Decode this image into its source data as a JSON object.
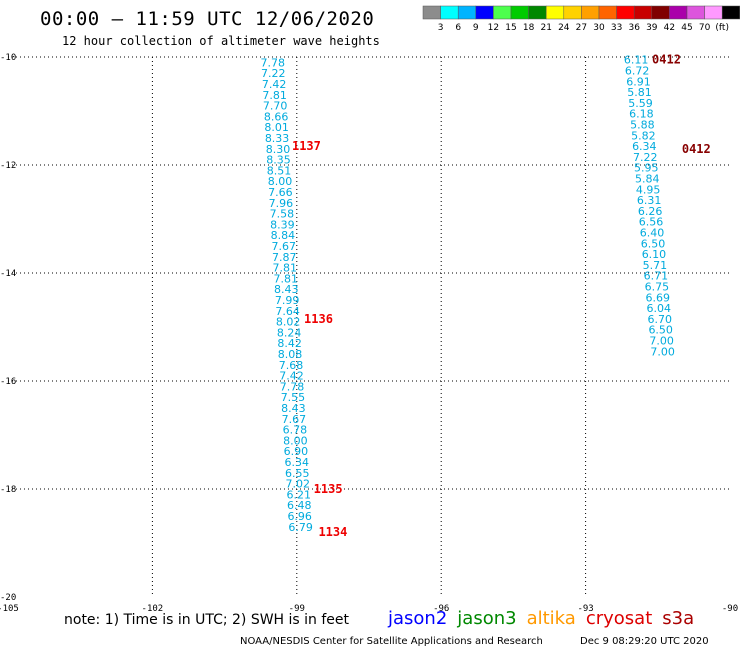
{
  "header": {
    "title": "00:00 – 11:59 UTC 12/06/2020",
    "subtitle": "12 hour collection of altimeter wave heights"
  },
  "colorbar": {
    "labels": [
      "3",
      "6",
      "9",
      "12",
      "15",
      "18",
      "21",
      "24",
      "27",
      "30",
      "33",
      "36",
      "39",
      "42",
      "45",
      "70"
    ],
    "unit": "(ft)",
    "colors": [
      "#8c8c8c",
      "#00ffff",
      "#00b4ff",
      "#0000ff",
      "#4dff4d",
      "#00cc00",
      "#008800",
      "#ffff00",
      "#ffd200",
      "#ffa000",
      "#ff6400",
      "#ff0000",
      "#c80000",
      "#800000",
      "#aa00aa",
      "#dd55dd",
      "#ff99ff",
      "#000000"
    ]
  },
  "chart_data": {
    "type": "scatter",
    "xlim": [
      -105,
      -90
    ],
    "ylim": [
      -20,
      -10
    ],
    "xticks": [
      "-105",
      "-102",
      "-99",
      "-96",
      "-93",
      "-90"
    ],
    "yticks": [
      "-10",
      "-12",
      "-14",
      "-16",
      "-18",
      "-20"
    ],
    "grid": true,
    "series": [
      {
        "name": "jason2",
        "color": "#00aadd",
        "points": [
          {
            "lon": -99.5,
            "lat": -10.1,
            "swh": "7.78"
          },
          {
            "lon": -99.49,
            "lat": -10.3,
            "swh": "7.22"
          },
          {
            "lon": -99.47,
            "lat": -10.5,
            "swh": "7.42"
          },
          {
            "lon": -99.46,
            "lat": -10.7,
            "swh": "7.81"
          },
          {
            "lon": -99.45,
            "lat": -10.9,
            "swh": "7.70"
          },
          {
            "lon": -99.43,
            "lat": -11.1,
            "swh": "8.66"
          },
          {
            "lon": -99.42,
            "lat": -11.3,
            "swh": "8.01"
          },
          {
            "lon": -99.41,
            "lat": -11.5,
            "swh": "8.33"
          },
          {
            "lon": -99.39,
            "lat": -11.7,
            "swh": "8.30"
          },
          {
            "lon": -99.38,
            "lat": -11.9,
            "swh": "8.35"
          },
          {
            "lon": -99.37,
            "lat": -12.1,
            "swh": "8.51"
          },
          {
            "lon": -99.35,
            "lat": -12.3,
            "swh": "8.00"
          },
          {
            "lon": -99.34,
            "lat": -12.5,
            "swh": "7.66"
          },
          {
            "lon": -99.33,
            "lat": -12.7,
            "swh": "7.96"
          },
          {
            "lon": -99.31,
            "lat": -12.9,
            "swh": "7.58"
          },
          {
            "lon": -99.3,
            "lat": -13.1,
            "swh": "8.39"
          },
          {
            "lon": -99.29,
            "lat": -13.3,
            "swh": "8.84"
          },
          {
            "lon": -99.27,
            "lat": -13.5,
            "swh": "7.67"
          },
          {
            "lon": -99.26,
            "lat": -13.7,
            "swh": "7.87"
          },
          {
            "lon": -99.25,
            "lat": -13.9,
            "swh": "7.81"
          },
          {
            "lon": -99.23,
            "lat": -14.1,
            "swh": "7.81"
          },
          {
            "lon": -99.22,
            "lat": -14.3,
            "swh": "8.43"
          },
          {
            "lon": -99.2,
            "lat": -14.5,
            "swh": "7.99"
          },
          {
            "lon": -99.19,
            "lat": -14.7,
            "swh": "7.64"
          },
          {
            "lon": -99.18,
            "lat": -14.9,
            "swh": "8.02"
          },
          {
            "lon": -99.16,
            "lat": -15.1,
            "swh": "8.24"
          },
          {
            "lon": -99.15,
            "lat": -15.3,
            "swh": "8.42"
          },
          {
            "lon": -99.14,
            "lat": -15.5,
            "swh": "8.08"
          },
          {
            "lon": -99.12,
            "lat": -15.7,
            "swh": "7.68"
          },
          {
            "lon": -99.11,
            "lat": -15.9,
            "swh": "7.42"
          },
          {
            "lon": -99.1,
            "lat": -16.1,
            "swh": "7.78"
          },
          {
            "lon": -99.08,
            "lat": -16.3,
            "swh": "7.55"
          },
          {
            "lon": -99.07,
            "lat": -16.5,
            "swh": "8.43"
          },
          {
            "lon": -99.06,
            "lat": -16.7,
            "swh": "7.67"
          },
          {
            "lon": -99.04,
            "lat": -16.9,
            "swh": "6.78"
          },
          {
            "lon": -99.03,
            "lat": -17.1,
            "swh": "8.00"
          },
          {
            "lon": -99.02,
            "lat": -17.3,
            "swh": "6.90"
          },
          {
            "lon": -99.0,
            "lat": -17.5,
            "swh": "6.34"
          },
          {
            "lon": -98.99,
            "lat": -17.7,
            "swh": "6.55"
          },
          {
            "lon": -98.98,
            "lat": -17.9,
            "swh": "7.02"
          },
          {
            "lon": -98.96,
            "lat": -18.1,
            "swh": "6.21"
          },
          {
            "lon": -98.95,
            "lat": -18.3,
            "swh": "6.48"
          },
          {
            "lon": -98.94,
            "lat": -18.5,
            "swh": "6.96"
          },
          {
            "lon": -98.92,
            "lat": -18.7,
            "swh": "6.79"
          },
          {
            "lon": -91.95,
            "lat": -10.05,
            "swh": "6.11"
          },
          {
            "lon": -91.93,
            "lat": -10.25,
            "swh": "6.72"
          },
          {
            "lon": -91.9,
            "lat": -10.45,
            "swh": "6.91"
          },
          {
            "lon": -91.88,
            "lat": -10.65,
            "swh": "5.81"
          },
          {
            "lon": -91.86,
            "lat": -10.85,
            "swh": "5.59"
          },
          {
            "lon": -91.84,
            "lat": -11.05,
            "swh": "6.18"
          },
          {
            "lon": -91.82,
            "lat": -11.25,
            "swh": "5.88"
          },
          {
            "lon": -91.8,
            "lat": -11.45,
            "swh": "5.82"
          },
          {
            "lon": -91.78,
            "lat": -11.65,
            "swh": "6.34"
          },
          {
            "lon": -91.76,
            "lat": -11.85,
            "swh": "7.22"
          },
          {
            "lon": -91.74,
            "lat": -12.05,
            "swh": "5.95"
          },
          {
            "lon": -91.72,
            "lat": -12.25,
            "swh": "5.84"
          },
          {
            "lon": -91.7,
            "lat": -12.45,
            "swh": "4.95"
          },
          {
            "lon": -91.68,
            "lat": -12.65,
            "swh": "6.31"
          },
          {
            "lon": -91.66,
            "lat": -12.85,
            "swh": "6.26"
          },
          {
            "lon": -91.64,
            "lat": -13.05,
            "swh": "6.56"
          },
          {
            "lon": -91.62,
            "lat": -13.25,
            "swh": "6.40"
          },
          {
            "lon": -91.6,
            "lat": -13.45,
            "swh": "6.50"
          },
          {
            "lon": -91.58,
            "lat": -13.65,
            "swh": "6.10"
          },
          {
            "lon": -91.56,
            "lat": -13.85,
            "swh": "5.71"
          },
          {
            "lon": -91.54,
            "lat": -14.05,
            "swh": "6.71"
          },
          {
            "lon": -91.52,
            "lat": -14.25,
            "swh": "6.75"
          },
          {
            "lon": -91.5,
            "lat": -14.45,
            "swh": "6.69"
          },
          {
            "lon": -91.48,
            "lat": -14.65,
            "swh": "6.04"
          },
          {
            "lon": -91.46,
            "lat": -14.85,
            "swh": "6.70"
          },
          {
            "lon": -91.44,
            "lat": -15.05,
            "swh": "6.50"
          },
          {
            "lon": -91.42,
            "lat": -15.25,
            "swh": "7.00"
          },
          {
            "lon": -91.4,
            "lat": -15.45,
            "swh": "7.00"
          }
        ]
      }
    ],
    "annotations": [
      {
        "text": "1137",
        "lon": -99.1,
        "lat": -11.65,
        "color": "#ee0000"
      },
      {
        "text": "1136",
        "lon": -98.85,
        "lat": -14.85,
        "color": "#ee0000"
      },
      {
        "text": "1135",
        "lon": -98.65,
        "lat": -18.0,
        "color": "#ee0000"
      },
      {
        "text": "1134",
        "lon": -98.55,
        "lat": -18.8,
        "color": "#ee0000"
      },
      {
        "text": "0412",
        "lon": -91.62,
        "lat": -10.05,
        "color": "#880000"
      },
      {
        "text": "0412",
        "lon": -91.0,
        "lat": -11.7,
        "color": "#880000"
      }
    ]
  },
  "notes": {
    "text": "note: 1) Time is in UTC; 2) SWH is in feet",
    "satellites": [
      {
        "name": "jason2",
        "color": "#0000ff"
      },
      {
        "name": "jason3",
        "color": "#008800"
      },
      {
        "name": "altika",
        "color": "#ff9900"
      },
      {
        "name": "cryosat",
        "color": "#dd0000"
      },
      {
        "name": "s3a",
        "color": "#aa0000"
      }
    ],
    "credit": "NOAA/NESDIS Center for Satellite Applications and Research",
    "generated": "Dec  9 08:29:20 UTC 2020"
  }
}
